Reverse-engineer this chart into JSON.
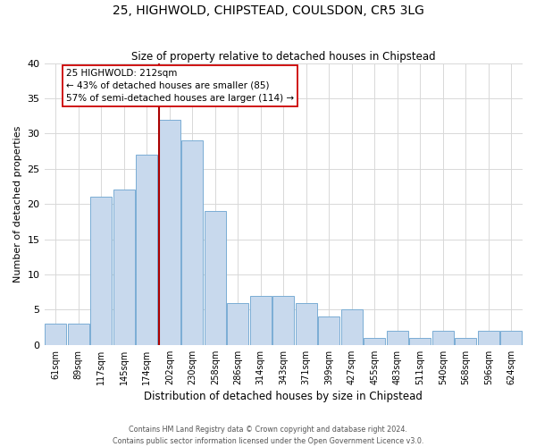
{
  "title": "25, HIGHWOLD, CHIPSTEAD, COULSDON, CR5 3LG",
  "subtitle": "Size of property relative to detached houses in Chipstead",
  "xlabel": "Distribution of detached houses by size in Chipstead",
  "ylabel": "Number of detached properties",
  "bar_color": "#c8d9ed",
  "bar_edge_color": "#7aadd4",
  "categories": [
    "61sqm",
    "89sqm",
    "117sqm",
    "145sqm",
    "174sqm",
    "202sqm",
    "230sqm",
    "258sqm",
    "286sqm",
    "314sqm",
    "343sqm",
    "371sqm",
    "399sqm",
    "427sqm",
    "455sqm",
    "483sqm",
    "511sqm",
    "540sqm",
    "568sqm",
    "596sqm",
    "624sqm"
  ],
  "values": [
    3,
    3,
    21,
    22,
    27,
    32,
    29,
    19,
    6,
    7,
    7,
    6,
    4,
    5,
    1,
    2,
    1,
    2,
    1,
    2,
    2
  ],
  "ylim": [
    0,
    40
  ],
  "yticks": [
    0,
    5,
    10,
    15,
    20,
    25,
    30,
    35,
    40
  ],
  "property_bar_index": 5,
  "red_line_color": "#aa0000",
  "annotation_title": "25 HIGHWOLD: 212sqm",
  "annotation_line1": "← 43% of detached houses are smaller (85)",
  "annotation_line2": "57% of semi-detached houses are larger (114) →",
  "annotation_box_color": "#ffffff",
  "annotation_box_edge": "#cc0000",
  "footer_line1": "Contains HM Land Registry data © Crown copyright and database right 2024.",
  "footer_line2": "Contains public sector information licensed under the Open Government Licence v3.0.",
  "background_color": "#ffffff",
  "grid_color": "#d8d8d8"
}
